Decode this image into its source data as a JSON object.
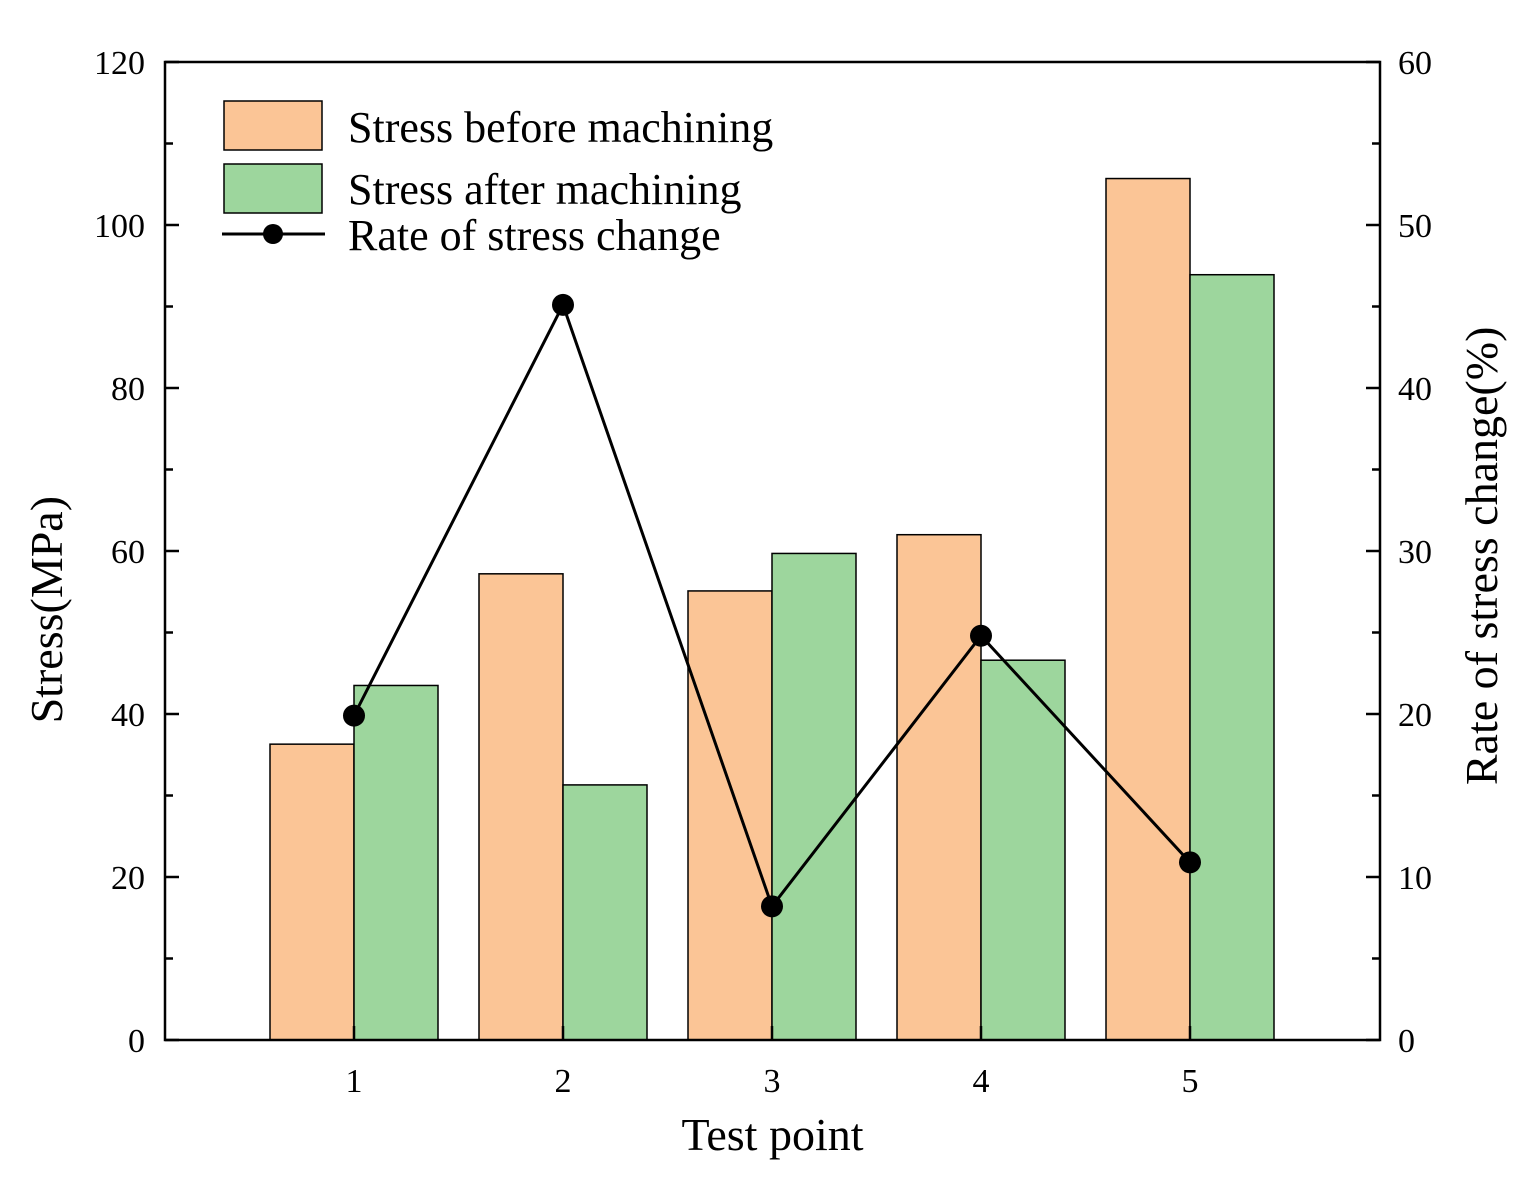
{
  "chart_data": {
    "type": "bar",
    "xlabel": "Test point",
    "ylabel": "Stress(MPa)",
    "y2label": "Rate of stress change(%)",
    "categories": [
      "1",
      "2",
      "3",
      "4",
      "5"
    ],
    "ylim": [
      0,
      120
    ],
    "y2lim": [
      0,
      60
    ],
    "yticks": [
      "0",
      "20",
      "40",
      "60",
      "80",
      "100",
      "120"
    ],
    "y2ticks": [
      "0",
      "10",
      "20",
      "30",
      "40",
      "50",
      "60"
    ],
    "series": [
      {
        "name": "Stress before machining",
        "kind": "bar",
        "axis": "left",
        "color": "#fbc596",
        "values": [
          36.3,
          57.2,
          55.1,
          62.0,
          105.7
        ]
      },
      {
        "name": "Stress after machining",
        "kind": "bar",
        "axis": "left",
        "color": "#9dd69d",
        "values": [
          43.5,
          31.3,
          59.7,
          46.6,
          93.9
        ]
      },
      {
        "name": "Rate of stress change",
        "kind": "line",
        "axis": "right",
        "color": "#000000",
        "values": [
          19.9,
          45.1,
          8.2,
          24.8,
          10.9
        ]
      }
    ],
    "legend": {
      "position": "top-left"
    },
    "grid": false
  }
}
